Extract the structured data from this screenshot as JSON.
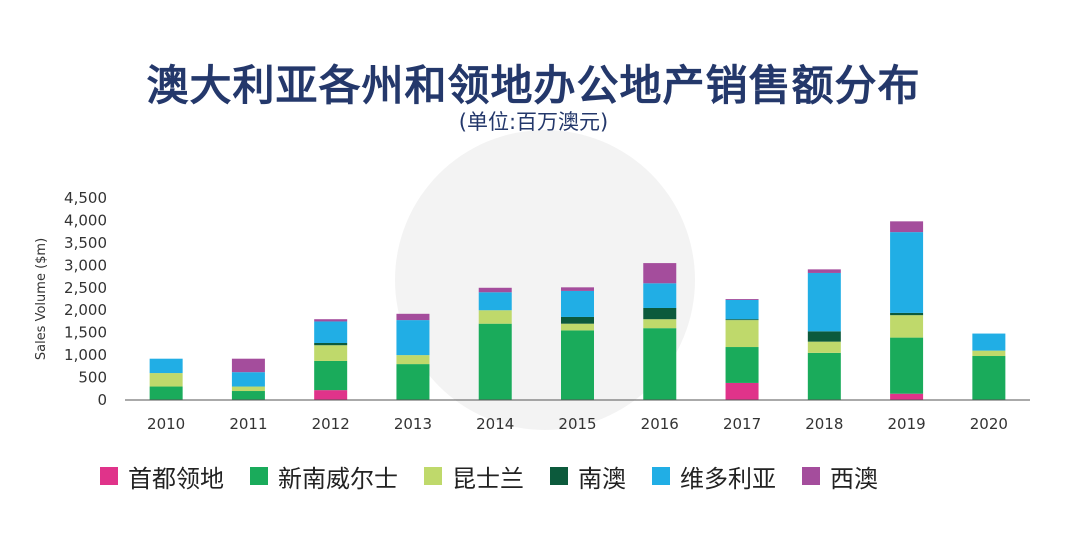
{
  "header": {
    "title": "澳大利亚各州和领地办公地产销售额分布",
    "subtitle": "(单位:百万澳元)"
  },
  "chart_data": {
    "type": "bar",
    "stacked": true,
    "title": "澳大利亚各州和领地办公地产销售额分布",
    "subtitle": "(单位:百万澳元)",
    "ylabel": "Sales Volume ($m)",
    "xlabel": "",
    "ylim": [
      0,
      4500
    ],
    "yticks": [
      "0",
      "500",
      "1,000",
      "1,500",
      "2,000",
      "2,500",
      "3,000",
      "3,500",
      "4,000",
      "4,500"
    ],
    "ytick_values": [
      0,
      500,
      1000,
      1500,
      2000,
      2500,
      3000,
      3500,
      4000,
      4500
    ],
    "grid": false,
    "legend_position": "bottom",
    "categories": [
      "2010",
      "2011",
      "2012",
      "2013",
      "2014",
      "2015",
      "2016",
      "2017",
      "2018",
      "2019",
      "2020"
    ],
    "series": [
      {
        "name": "首都领地",
        "color": "#e0338a",
        "values": [
          0,
          0,
          220,
          0,
          0,
          0,
          0,
          380,
          0,
          140,
          0
        ]
      },
      {
        "name": "新南威尔士",
        "color": "#1aab5b",
        "values": [
          300,
          200,
          650,
          800,
          1700,
          1550,
          1600,
          800,
          1050,
          1250,
          980
        ]
      },
      {
        "name": "昆士兰",
        "color": "#bfd96b",
        "values": [
          300,
          100,
          350,
          200,
          300,
          150,
          200,
          600,
          250,
          500,
          120
        ]
      },
      {
        "name": "南澳",
        "color": "#0c5a3c",
        "values": [
          0,
          0,
          50,
          0,
          0,
          150,
          250,
          20,
          230,
          50,
          0
        ]
      },
      {
        "name": "维多利亚",
        "color": "#21aee5",
        "values": [
          320,
          320,
          480,
          780,
          400,
          580,
          550,
          430,
          1300,
          1800,
          380
        ]
      },
      {
        "name": "西澳",
        "color": "#a44d9c",
        "values": [
          0,
          300,
          50,
          140,
          100,
          80,
          450,
          20,
          80,
          240,
          0
        ]
      }
    ]
  }
}
